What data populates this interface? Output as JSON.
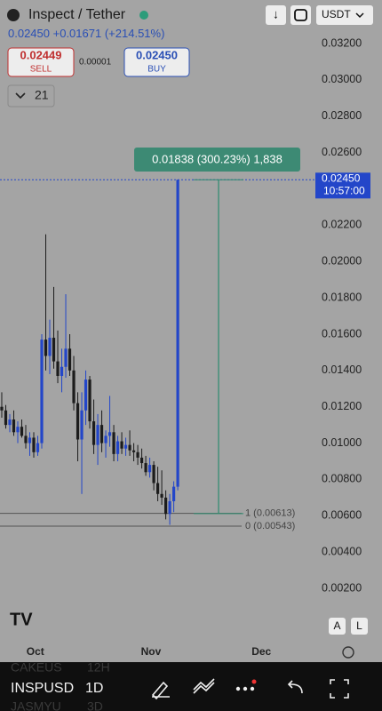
{
  "header": {
    "title": "Inspect / Tether",
    "quote_currency": "USDT",
    "price": "0.02450",
    "change": "+0.01671",
    "change_pct": "(+214.51%)",
    "sell_price": "0.02449",
    "sell_label": "SELL",
    "spread": "0.00001",
    "buy_price": "0.02450",
    "buy_label": "BUY",
    "indicator_count": "21"
  },
  "chart_data": {
    "type": "candlestick",
    "up_color": "#2346c9",
    "down_color": "#1c1c1c",
    "ylim": [
      -0.00157,
      0.0344
    ],
    "xlim": [
      -0.44,
      78.4
    ],
    "yticks": [
      {
        "value": 0.032,
        "label": "0.03200"
      },
      {
        "value": 0.03,
        "label": "0.03000"
      },
      {
        "value": 0.028,
        "label": "0.02800"
      },
      {
        "value": 0.026,
        "label": "0.02600"
      },
      {
        "value": 0.024,
        "label": "0.02400"
      },
      {
        "value": 0.022,
        "label": "0.02200"
      },
      {
        "value": 0.02,
        "label": "0.02000"
      },
      {
        "value": 0.018,
        "label": "0.01800"
      },
      {
        "value": 0.016,
        "label": "0.01600"
      },
      {
        "value": 0.014,
        "label": "0.01400"
      },
      {
        "value": 0.012,
        "label": "0.01200"
      },
      {
        "value": 0.01,
        "label": "0.01000"
      },
      {
        "value": 0.008,
        "label": "0.00800"
      },
      {
        "value": 0.006,
        "label": "0.00600"
      },
      {
        "value": 0.004,
        "label": "0.00400"
      },
      {
        "value": 0.002,
        "label": "0.00200"
      }
    ],
    "xticks": [
      {
        "value": 8.4,
        "label": "Oct"
      },
      {
        "value": 37.3,
        "label": "Nov"
      },
      {
        "value": 64.9,
        "label": "Dec"
      }
    ],
    "candles": [
      [
        0.012,
        0.0128,
        0.0114,
        0.0118
      ],
      [
        0.0118,
        0.0121,
        0.0108,
        0.011
      ],
      [
        0.011,
        0.0116,
        0.0106,
        0.0113
      ],
      [
        0.0113,
        0.0118,
        0.0104,
        0.0106
      ],
      [
        0.0106,
        0.0112,
        0.01,
        0.0109
      ],
      [
        0.0109,
        0.0113,
        0.0103,
        0.0104
      ],
      [
        0.0104,
        0.011,
        0.0097,
        0.01
      ],
      [
        0.01,
        0.0106,
        0.0093,
        0.0103
      ],
      [
        0.0103,
        0.0106,
        0.0092,
        0.0095
      ],
      [
        0.0095,
        0.0104,
        0.0093,
        0.01
      ],
      [
        0.01,
        0.016,
        0.0097,
        0.0157
      ],
      [
        0.0157,
        0.0215,
        0.014,
        0.0148
      ],
      [
        0.0148,
        0.0168,
        0.0138,
        0.0158
      ],
      [
        0.0158,
        0.0186,
        0.0141,
        0.0145
      ],
      [
        0.0145,
        0.0162,
        0.0133,
        0.0137
      ],
      [
        0.0137,
        0.0152,
        0.0128,
        0.0142
      ],
      [
        0.0142,
        0.0182,
        0.0136,
        0.0152
      ],
      [
        0.0152,
        0.016,
        0.0137,
        0.014
      ],
      [
        0.014,
        0.0148,
        0.0118,
        0.0122
      ],
      [
        0.0122,
        0.0128,
        0.009,
        0.0102
      ],
      [
        0.0102,
        0.0128,
        0.0072,
        0.0118
      ],
      [
        0.0118,
        0.014,
        0.011,
        0.0135
      ],
      [
        0.0135,
        0.0137,
        0.0108,
        0.0112
      ],
      [
        0.0112,
        0.0124,
        0.0094,
        0.0099
      ],
      [
        0.0099,
        0.0116,
        0.0088,
        0.011
      ],
      [
        0.011,
        0.0118,
        0.0095,
        0.01
      ],
      [
        0.01,
        0.0107,
        0.0092,
        0.0104
      ],
      [
        0.0104,
        0.0126,
        0.0098,
        0.0106
      ],
      [
        0.0106,
        0.011,
        0.009,
        0.0094
      ],
      [
        0.0094,
        0.0104,
        0.009,
        0.0101
      ],
      [
        0.0101,
        0.0106,
        0.0094,
        0.0097
      ],
      [
        0.0097,
        0.0103,
        0.0093,
        0.0099
      ],
      [
        0.0099,
        0.0107,
        0.0093,
        0.0096
      ],
      [
        0.0096,
        0.01,
        0.009,
        0.0095
      ],
      [
        0.0095,
        0.0099,
        0.0088,
        0.0092
      ],
      [
        0.0092,
        0.0097,
        0.0086,
        0.0089
      ],
      [
        0.0089,
        0.0093,
        0.0082,
        0.0084
      ],
      [
        0.0084,
        0.0092,
        0.0081,
        0.0088
      ],
      [
        0.0088,
        0.009,
        0.0074,
        0.0078
      ],
      [
        0.0078,
        0.0087,
        0.0068,
        0.0072
      ],
      [
        0.0072,
        0.0085,
        0.0066,
        0.007
      ],
      [
        0.007,
        0.0074,
        0.0058,
        0.0061
      ],
      [
        0.0061,
        0.0072,
        0.0055,
        0.0068
      ],
      [
        0.0068,
        0.0079,
        0.0062,
        0.0076
      ],
      [
        0.0076,
        0.0245,
        0.0074,
        0.0245
      ]
    ],
    "last_price": {
      "value": 0.0245,
      "label": "0.02450",
      "time": "10:57:00"
    },
    "measure": {
      "from": 0.00612,
      "to": 0.0245,
      "x": 54.2,
      "label": "0.01838 (300.23%) 1,838"
    },
    "levels": [
      {
        "value": 0.00613,
        "label": "1 (0.00613)"
      },
      {
        "value": 0.00543,
        "label": "0 (0.00543)"
      }
    ]
  },
  "footer": {
    "symbol": "INSPUSD",
    "interval": "1D",
    "ghost_symbol_1": "CAKEUS",
    "ghost_interval_1": "12H",
    "ghost_symbol_2": "JASMYU",
    "ghost_interval_2": "3D",
    "auto_button": "A",
    "log_button": "L"
  }
}
